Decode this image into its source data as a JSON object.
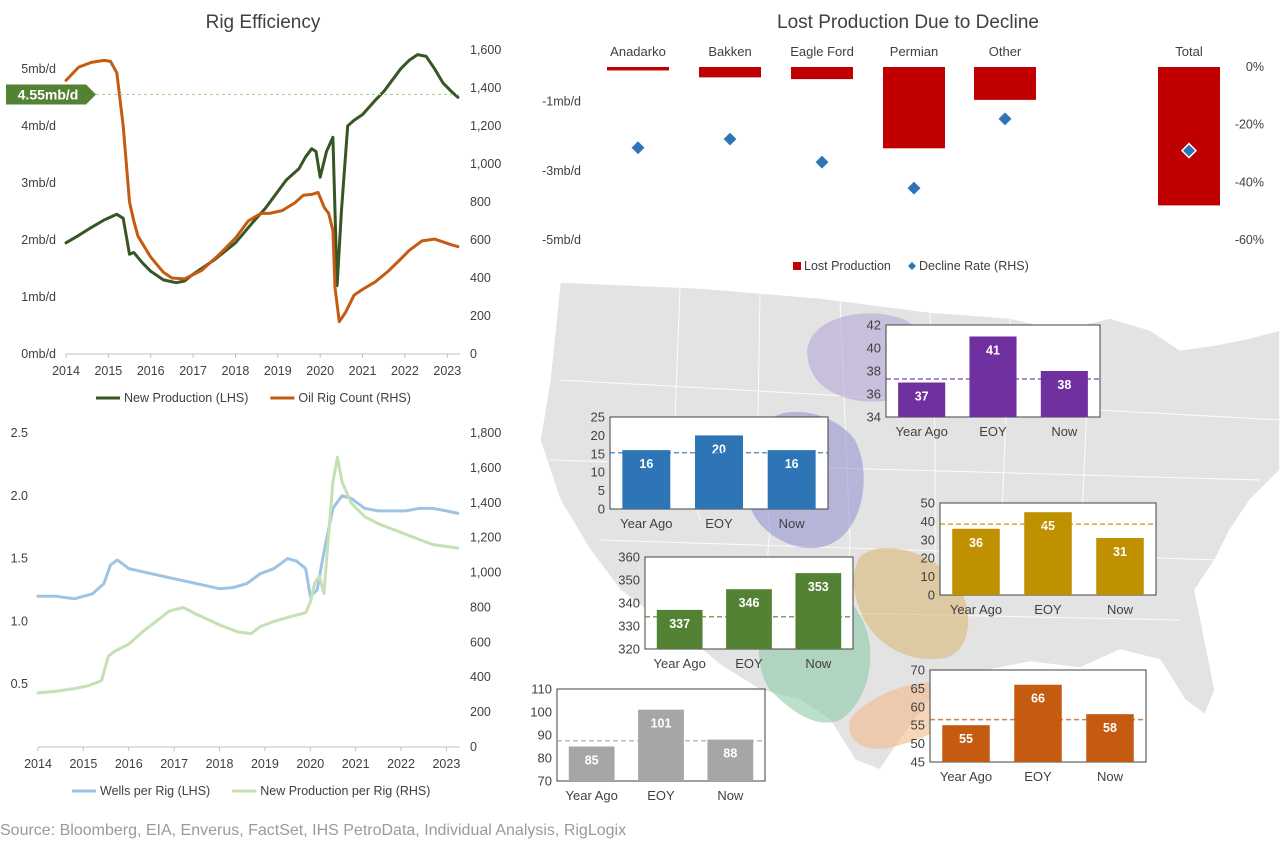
{
  "source": "Source: Bloomberg, EIA, Enverus, FactSet, IHS PetroData, Individual Analysis, RigLogix",
  "chart_data": [
    {
      "id": "rig-efficiency",
      "type": "line",
      "title": "Rig Efficiency",
      "x_ticks": [
        "2014",
        "2015",
        "2016",
        "2017",
        "2018",
        "2019",
        "2020",
        "2021",
        "2022",
        "2023"
      ],
      "xlim": [
        2014,
        2023.3
      ],
      "y_left": {
        "ticks": [
          "0mb/d",
          "1mb/d",
          "2mb/d",
          "3mb/d",
          "4mb/d",
          "5mb/d"
        ],
        "lim": [
          0,
          5.33
        ]
      },
      "y_right": {
        "ticks": [
          "0",
          "200",
          "400",
          "600",
          "800",
          "1,000",
          "1,200",
          "1,400",
          "1,600"
        ],
        "lim": [
          0,
          1600
        ]
      },
      "annotation": {
        "label": "4.55mb/d",
        "value": 4.55,
        "color": "#548235"
      },
      "series": [
        {
          "name": "New Production (LHS)",
          "axis": "left",
          "color": "#375623",
          "x": [
            2014,
            2014.3,
            2014.6,
            2014.9,
            2015.2,
            2015.35,
            2015.5,
            2015.6,
            2015.8,
            2016.0,
            2016.3,
            2016.6,
            2016.8,
            2017.0,
            2017.5,
            2018.0,
            2018.4,
            2018.7,
            2018.9,
            2019.2,
            2019.5,
            2019.65,
            2019.8,
            2019.9,
            2020.0,
            2020.15,
            2020.3,
            2020.4,
            2020.5,
            2020.65,
            2020.8,
            2021.0,
            2021.3,
            2021.5,
            2021.7,
            2021.9,
            2022.1,
            2022.3,
            2022.5,
            2022.7,
            2022.9,
            2023.1,
            2023.25
          ],
          "y": [
            1.95,
            2.08,
            2.22,
            2.35,
            2.45,
            2.38,
            1.75,
            1.78,
            1.6,
            1.45,
            1.3,
            1.25,
            1.28,
            1.4,
            1.65,
            1.95,
            2.3,
            2.55,
            2.75,
            3.05,
            3.25,
            3.45,
            3.6,
            3.55,
            3.1,
            3.55,
            3.8,
            1.2,
            2.5,
            4.0,
            4.1,
            4.2,
            4.45,
            4.6,
            4.8,
            5.0,
            5.15,
            5.25,
            5.22,
            5.0,
            4.75,
            4.6,
            4.5
          ]
        },
        {
          "name": "Oil Rig Count (RHS)",
          "axis": "right",
          "color": "#c55a11",
          "x": [
            2014,
            2014.3,
            2014.6,
            2014.9,
            2015.05,
            2015.2,
            2015.35,
            2015.5,
            2015.6,
            2015.7,
            2016.0,
            2016.3,
            2016.5,
            2016.8,
            2017.2,
            2017.6,
            2018.0,
            2018.3,
            2018.6,
            2018.8,
            2019.1,
            2019.4,
            2019.6,
            2019.8,
            2019.95,
            2020.1,
            2020.2,
            2020.3,
            2020.35,
            2020.45,
            2020.6,
            2020.8,
            2021.0,
            2021.3,
            2021.6,
            2021.9,
            2022.1,
            2022.4,
            2022.7,
            2022.9,
            2023.1,
            2023.25
          ],
          "y": [
            1440,
            1510,
            1535,
            1545,
            1540,
            1480,
            1200,
            800,
            700,
            620,
            510,
            430,
            400,
            395,
            440,
            520,
            610,
            700,
            740,
            740,
            755,
            795,
            835,
            840,
            850,
            770,
            740,
            650,
            350,
            170,
            220,
            310,
            340,
            380,
            435,
            500,
            545,
            595,
            605,
            590,
            575,
            565
          ]
        }
      ]
    },
    {
      "id": "wells-per-rig",
      "type": "line",
      "title": "",
      "x_ticks": [
        "2014",
        "2015",
        "2016",
        "2017",
        "2018",
        "2019",
        "2020",
        "2021",
        "2022",
        "2023"
      ],
      "xlim": [
        2014,
        2023.3
      ],
      "y_left": {
        "ticks": [
          "0.5",
          "1.0",
          "1.5",
          "2.0",
          "2.5"
        ],
        "lim": [
          0.0,
          2.5
        ]
      },
      "y_right": {
        "ticks": [
          "0",
          "200",
          "400",
          "600",
          "800",
          "1,000",
          "1,200",
          "1,400",
          "1,600",
          "1,800"
        ],
        "lim": [
          0,
          1800
        ]
      },
      "series": [
        {
          "name": "Wells per Rig (LHS)",
          "axis": "left",
          "color": "#9dc3e6",
          "x": [
            2014,
            2014.4,
            2014.8,
            2015.2,
            2015.45,
            2015.6,
            2015.75,
            2016.0,
            2016.5,
            2017.0,
            2017.5,
            2018.0,
            2018.3,
            2018.6,
            2018.9,
            2019.2,
            2019.5,
            2019.7,
            2019.9,
            2020.0,
            2020.15,
            2020.3,
            2020.5,
            2020.7,
            2020.9,
            2021.2,
            2021.5,
            2021.8,
            2022.1,
            2022.4,
            2022.7,
            2023.0,
            2023.25
          ],
          "y": [
            1.2,
            1.2,
            1.18,
            1.22,
            1.3,
            1.45,
            1.49,
            1.42,
            1.38,
            1.34,
            1.3,
            1.26,
            1.27,
            1.3,
            1.38,
            1.42,
            1.5,
            1.48,
            1.42,
            1.2,
            1.25,
            1.55,
            1.9,
            2.0,
            1.98,
            1.9,
            1.88,
            1.88,
            1.88,
            1.9,
            1.9,
            1.88,
            1.86
          ]
        },
        {
          "name": "New Production per Rig (RHS)",
          "axis": "right",
          "color": "#c5e0b4",
          "x": [
            2014,
            2014.4,
            2014.8,
            2015.1,
            2015.4,
            2015.55,
            2015.7,
            2016.0,
            2016.3,
            2016.6,
            2016.9,
            2017.2,
            2017.5,
            2018.0,
            2018.4,
            2018.7,
            2018.9,
            2019.2,
            2019.6,
            2019.9,
            2020.0,
            2020.1,
            2020.2,
            2020.3,
            2020.4,
            2020.5,
            2020.6,
            2020.7,
            2020.9,
            2021.2,
            2021.5,
            2021.9,
            2022.3,
            2022.7,
            2023.0,
            2023.25
          ],
          "y": [
            310,
            320,
            335,
            350,
            380,
            520,
            550,
            590,
            660,
            720,
            780,
            800,
            760,
            700,
            660,
            650,
            690,
            720,
            750,
            770,
            830,
            940,
            980,
            880,
            1200,
            1520,
            1660,
            1520,
            1400,
            1320,
            1280,
            1240,
            1200,
            1160,
            1150,
            1140
          ]
        }
      ]
    },
    {
      "id": "lost-production",
      "type": "bar",
      "title": "Lost Production Due to Decline",
      "categories": [
        "Anadarko",
        "Bakken",
        "Eagle Ford",
        "Permian",
        "Other",
        "Total"
      ],
      "y_left": {
        "ticks": [
          "-1mb/d",
          "-3mb/d",
          "-5mb/d"
        ],
        "tick_values": [
          -1,
          -3,
          -5
        ],
        "lim": [
          -5,
          0
        ]
      },
      "y_right": {
        "ticks": [
          "0%",
          "-20%",
          "-40%",
          "-60%"
        ],
        "tick_values": [
          0,
          -20,
          -40,
          -60
        ],
        "lim": [
          -60,
          0
        ]
      },
      "series": [
        {
          "name": "Lost Production",
          "axis": "left",
          "color": "#c00000",
          "values": [
            -0.1,
            -0.3,
            -0.35,
            -2.35,
            -0.95,
            -4.0
          ]
        },
        {
          "name": "Decline Rate (RHS)",
          "axis": "right",
          "color": "#2e75b6",
          "marker": "diamond",
          "values": [
            -28,
            -25,
            -33,
            -42,
            -18,
            -29
          ]
        }
      ],
      "legend": "bottom"
    },
    {
      "id": "inset-purple",
      "type": "bar",
      "color": "#7030a0",
      "categories": [
        "Year Ago",
        "EOY",
        "Now"
      ],
      "values": [
        37,
        41,
        38
      ],
      "y_ticks": [
        "34",
        "36",
        "38",
        "40",
        "42"
      ],
      "ylim": [
        34,
        42
      ],
      "reference": 37.3
    },
    {
      "id": "inset-blue",
      "type": "bar",
      "color": "#2e75b6",
      "categories": [
        "Year Ago",
        "EOY",
        "Now"
      ],
      "values": [
        16,
        20,
        16
      ],
      "y_ticks": [
        "0",
        "5",
        "10",
        "15",
        "20",
        "25"
      ],
      "ylim": [
        0,
        25
      ],
      "reference": 15.3
    },
    {
      "id": "inset-gold",
      "type": "bar",
      "color": "#bf9000",
      "categories": [
        "Year Ago",
        "EOY",
        "Now"
      ],
      "values": [
        36,
        45,
        31
      ],
      "y_ticks": [
        "0",
        "10",
        "20",
        "30",
        "40",
        "50"
      ],
      "ylim": [
        0,
        50
      ],
      "reference": 38.5
    },
    {
      "id": "inset-green",
      "type": "bar",
      "color": "#548235",
      "categories": [
        "Year Ago",
        "EOY",
        "Now"
      ],
      "values": [
        337,
        346,
        353
      ],
      "y_ticks": [
        "320",
        "330",
        "340",
        "350",
        "360"
      ],
      "ylim": [
        320,
        360
      ],
      "reference": 334
    },
    {
      "id": "inset-gray",
      "type": "bar",
      "color": "#a6a6a6",
      "categories": [
        "Year Ago",
        "EOY",
        "Now"
      ],
      "values": [
        85,
        101,
        88
      ],
      "y_ticks": [
        "70",
        "80",
        "90",
        "100",
        "110"
      ],
      "ylim": [
        70,
        110
      ],
      "reference": 87.5
    },
    {
      "id": "inset-orange",
      "type": "bar",
      "color": "#c55a11",
      "categories": [
        "Year Ago",
        "EOY",
        "Now"
      ],
      "values": [
        55,
        66,
        58
      ],
      "y_ticks": [
        "45",
        "50",
        "55",
        "60",
        "65",
        "70"
      ],
      "ylim": [
        45,
        70
      ],
      "reference": 56.5
    }
  ]
}
